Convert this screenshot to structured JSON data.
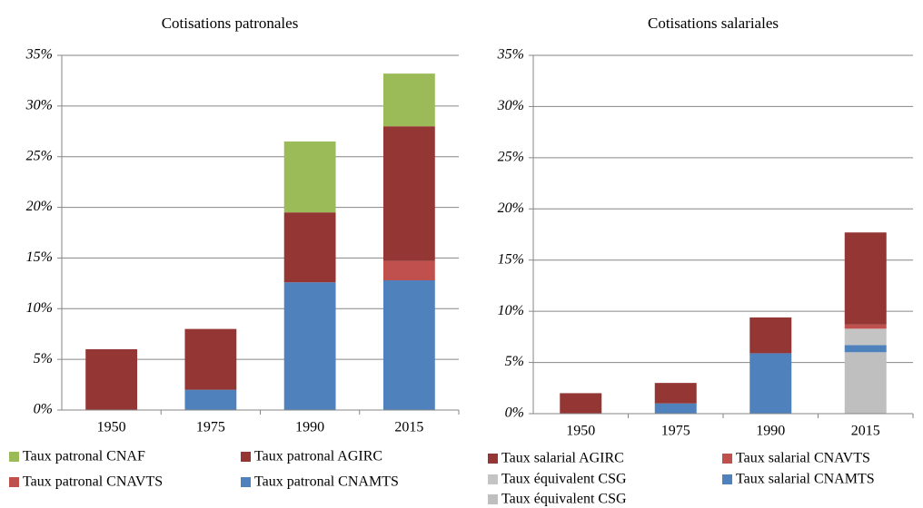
{
  "chart_data": [
    {
      "type": "bar",
      "stacked": true,
      "title": "Cotisations patronales",
      "categories": [
        "1950",
        "1975",
        "1990",
        "2015"
      ],
      "ylim": [
        0,
        35
      ],
      "yticks": [
        {
          "value": 0,
          "label": "0%"
        },
        {
          "value": 5,
          "label": "5%"
        },
        {
          "value": 10,
          "label": "10%"
        },
        {
          "value": 15,
          "label": "15%"
        },
        {
          "value": 20,
          "label": "20%"
        },
        {
          "value": 25,
          "label": "25%"
        },
        {
          "value": 30,
          "label": "30%"
        },
        {
          "value": 35,
          "label": "35%"
        }
      ],
      "grid": true,
      "series": [
        {
          "name": "Taux patronal CNAMTS",
          "color": "#4f81bd",
          "values": [
            0,
            2,
            12.6,
            12.8
          ]
        },
        {
          "name": "Taux patronal CNAVTS",
          "color": "#c0504d",
          "values": [
            0,
            0,
            0,
            1.9
          ]
        },
        {
          "name": "Taux patronal AGIRC",
          "color": "#943634",
          "values": [
            6,
            6,
            6.9,
            13.3
          ]
        },
        {
          "name": "Taux patronal CNAF",
          "color": "#9bbb59",
          "values": [
            0,
            0,
            7,
            5.2
          ]
        }
      ]
    },
    {
      "type": "bar",
      "stacked": true,
      "title": "Cotisations salariales",
      "categories": [
        "1950",
        "1975",
        "1990",
        "2015"
      ],
      "ylim": [
        0,
        35
      ],
      "yticks": [
        {
          "value": 0,
          "label": "0%"
        },
        {
          "value": 5,
          "label": "5%"
        },
        {
          "value": 10,
          "label": "10%"
        },
        {
          "value": 15,
          "label": "15%"
        },
        {
          "value": 20,
          "label": "20%"
        },
        {
          "value": 25,
          "label": "25%"
        },
        {
          "value": 30,
          "label": "30%"
        },
        {
          "value": 35,
          "label": "35%"
        }
      ],
      "grid": true,
      "series": [
        {
          "name": "Taux équivalent CSG",
          "color": "#bfbfbf",
          "values": [
            0,
            0,
            0,
            6
          ]
        },
        {
          "name": "Taux salarial CNAMTS",
          "color": "#4f81bd",
          "values": [
            0,
            1,
            5.9,
            0.7
          ]
        },
        {
          "name": "Taux équivalent CSG",
          "color": "#c4c4c4",
          "values": [
            0,
            0,
            0,
            1.6
          ]
        },
        {
          "name": "Taux salarial CNAVTS",
          "color": "#c0504d",
          "values": [
            0,
            0,
            0,
            0.4
          ]
        },
        {
          "name": "Taux salarial AGIRC",
          "color": "#943634",
          "values": [
            2,
            2,
            3.5,
            9
          ]
        }
      ]
    }
  ]
}
